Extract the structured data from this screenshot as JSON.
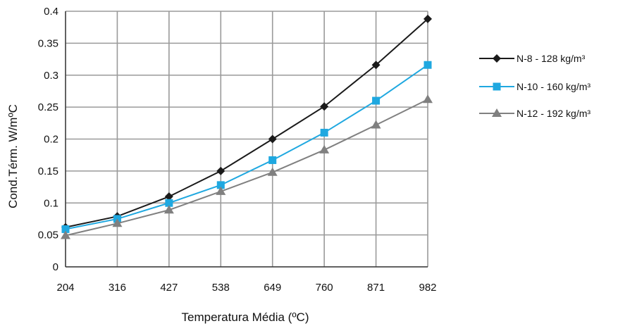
{
  "chart_data": {
    "type": "line",
    "x": [
      "204",
      "316",
      "427",
      "538",
      "649",
      "760",
      "871",
      "982"
    ],
    "xlabel": "Temperatura Média (ºC)",
    "ylabel": "Cond.Térm. W/mºC",
    "ylim": [
      0,
      0.4
    ],
    "yticks": [
      "0",
      "0.05",
      "0.1",
      "0.15",
      "0.2",
      "0.25",
      "0.3",
      "0.35",
      "0.4"
    ],
    "grid": true,
    "legend_position": "right",
    "series": [
      {
        "name": "N-8  - 128 kg/m³",
        "color": "#1a1a1a",
        "marker": "diamond",
        "values": [
          0.062,
          0.079,
          0.11,
          0.15,
          0.2,
          0.251,
          0.316,
          0.388
        ]
      },
      {
        "name": "N-10 - 160 kg/m³",
        "color": "#1fa8e0",
        "marker": "square",
        "values": [
          0.059,
          0.075,
          0.1,
          0.128,
          0.167,
          0.21,
          0.26,
          0.316
        ]
      },
      {
        "name": "N-12 - 192 kg/m³",
        "color": "#808080",
        "marker": "triangle",
        "values": [
          0.049,
          0.068,
          0.089,
          0.118,
          0.148,
          0.183,
          0.222,
          0.262
        ]
      }
    ]
  }
}
